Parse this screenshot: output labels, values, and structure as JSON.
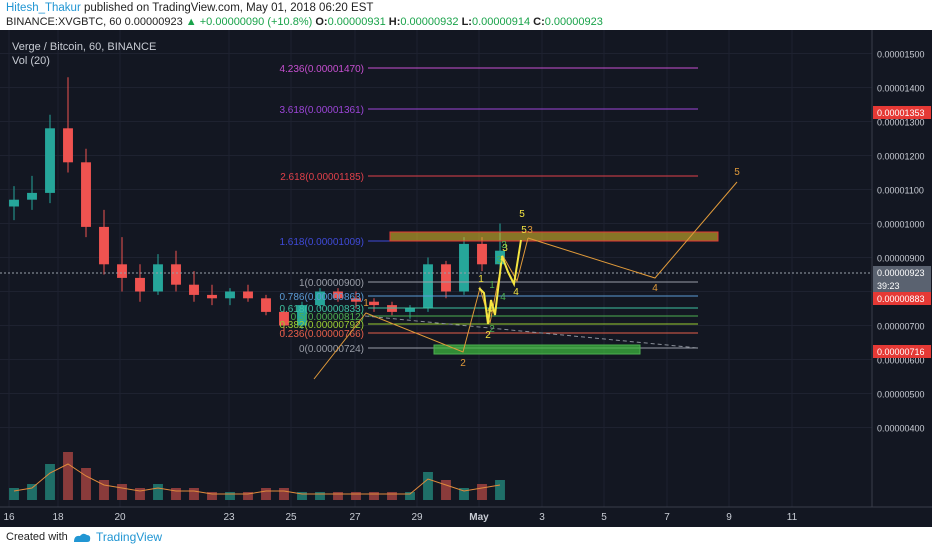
{
  "header": {
    "author": "Hitesh_Thakur",
    "published": "published on TradingView.com, May 01, 2018 06:20 EST",
    "symbol": "BINANCE:XVGBTC, 60",
    "last": "0.00000923",
    "change": "▲ +0.00000090 (+10.8%)",
    "o_label": "O:",
    "o": "0.00000931",
    "h_label": "H:",
    "h": "0.00000932",
    "l_label": "L:",
    "l": "0.00000914",
    "c_label": "C:",
    "c": "0.00000923"
  },
  "chart_data": {
    "type": "candlestick",
    "title": "Verge / Bitcoin, 60, BINANCE",
    "volume_label": "Vol (20)",
    "y_ticks": [
      "0.00001500",
      "0.00001400",
      "0.00001300",
      "0.00001200",
      "0.00001100",
      "0.00001000",
      "0.00000900",
      "0.00000800",
      "0.00000700",
      "0.00000600",
      "0.00000500",
      "0.00000400"
    ],
    "x_ticks": [
      "16",
      "18",
      "20",
      "23",
      "25",
      "27",
      "29",
      "May",
      "3",
      "5",
      "7",
      "9",
      "11"
    ],
    "y_range": [
      3.6e-06,
      1.55e-05
    ],
    "fib_levels": [
      {
        "label": "4.236(0.00001470)",
        "color": "#c74fd1"
      },
      {
        "label": "3.618(0.00001361)",
        "color": "#9c45d8"
      },
      {
        "label": "2.618(0.00001185)",
        "color": "#e0404a"
      },
      {
        "label": "1.618(0.00001009)",
        "color": "#3f4ad8"
      },
      {
        "label": "1(0.00000900)",
        "color": "#9a9ea8"
      },
      {
        "label": "0.786(0.00000863)",
        "color": "#5b9bd5"
      },
      {
        "label": "0.618(0.00000833)",
        "color": "#3ec1a0"
      },
      {
        "label": "0.5(0.00000812)",
        "color": "#4caf50"
      },
      {
        "label": "0.382(0.00000792)",
        "color": "#9acd32"
      },
      {
        "label": "0.236(0.00000766)",
        "color": "#e65f4a"
      },
      {
        "label": "0(0.00000724)",
        "color": "#9a9ea8"
      }
    ],
    "price_tags": [
      {
        "label": "0.00001353",
        "color": "#e53935"
      },
      {
        "label": "0.00000923",
        "color": "#5a6270"
      },
      {
        "label": "39:23",
        "color": "#5a6270"
      },
      {
        "label": "0.00000883",
        "color": "#e53935"
      },
      {
        "label": "0.00000716",
        "color": "#e53935"
      }
    ],
    "wave_labels": [
      "1",
      "2",
      "3",
      "4",
      "5",
      "1",
      "2",
      "3",
      "4",
      "5",
      "3",
      "4",
      "2",
      "1",
      "3",
      "4",
      "5"
    ],
    "candles": [
      [
        1.05e-05,
        1.11e-05,
        1.01e-05,
        1.07e-05
      ],
      [
        1.07e-05,
        1.14e-05,
        1.04e-05,
        1.09e-05
      ],
      [
        1.09e-05,
        1.32e-05,
        1.06e-05,
        1.28e-05
      ],
      [
        1.28e-05,
        1.43e-05,
        1.15e-05,
        1.18e-05
      ],
      [
        1.18e-05,
        1.22e-05,
        9.6e-06,
        9.9e-06
      ],
      [
        9.9e-06,
        1.04e-05,
        8.5e-06,
        8.8e-06
      ],
      [
        8.8e-06,
        9.6e-06,
        8e-06,
        8.4e-06
      ],
      [
        8.4e-06,
        8.8e-06,
        7.7e-06,
        8e-06
      ],
      [
        8e-06,
        9.1e-06,
        7.9e-06,
        8.8e-06
      ],
      [
        8.8e-06,
        9.2e-06,
        8e-06,
        8.2e-06
      ],
      [
        8.2e-06,
        8.6e-06,
        7.7e-06,
        7.9e-06
      ],
      [
        7.9e-06,
        8.2e-06,
        7.6e-06,
        7.8e-06
      ],
      [
        7.8e-06,
        8.1e-06,
        7.6e-06,
        8e-06
      ],
      [
        8e-06,
        8.2e-06,
        7.7e-06,
        7.8e-06
      ],
      [
        7.8e-06,
        7.9e-06,
        7.3e-06,
        7.4e-06
      ],
      [
        7.4e-06,
        7.5e-06,
        6.7e-06,
        7e-06
      ],
      [
        7e-06,
        7.7e-06,
        6.9e-06,
        7.6e-06
      ],
      [
        7.6e-06,
        8.1e-06,
        7.5e-06,
        8e-06
      ],
      [
        8e-06,
        8.1e-06,
        7.7e-06,
        7.8e-06
      ],
      [
        7.8e-06,
        8e-06,
        7.5e-06,
        7.7e-06
      ],
      [
        7.7e-06,
        7.8e-06,
        7.4e-06,
        7.6e-06
      ],
      [
        7.6e-06,
        7.7e-06,
        7.3e-06,
        7.4e-06
      ],
      [
        7.4e-06,
        7.6e-06,
        7.2e-06,
        7.5e-06
      ],
      [
        7.5e-06,
        9e-06,
        7.4e-06,
        8.8e-06
      ],
      [
        8.8e-06,
        8.9e-06,
        7.8e-06,
        8e-06
      ],
      [
        8e-06,
        9.6e-06,
        7.9e-06,
        9.4e-06
      ],
      [
        9.4e-06,
        9.6e-06,
        8.6e-06,
        8.8e-06
      ],
      [
        8.8e-06,
        1e-05,
        8.7e-06,
        9.2e-06
      ]
    ],
    "volumes": [
      3,
      4,
      9,
      12,
      8,
      5,
      4,
      3,
      4,
      3,
      3,
      2,
      2,
      2,
      3,
      3,
      2,
      2,
      2,
      2,
      2,
      2,
      2,
      7,
      5,
      3,
      4,
      5
    ]
  },
  "footer": {
    "created_with": "Created with",
    "brand": "TradingView",
    "brand_icon": "tradingview-logo-icon"
  }
}
